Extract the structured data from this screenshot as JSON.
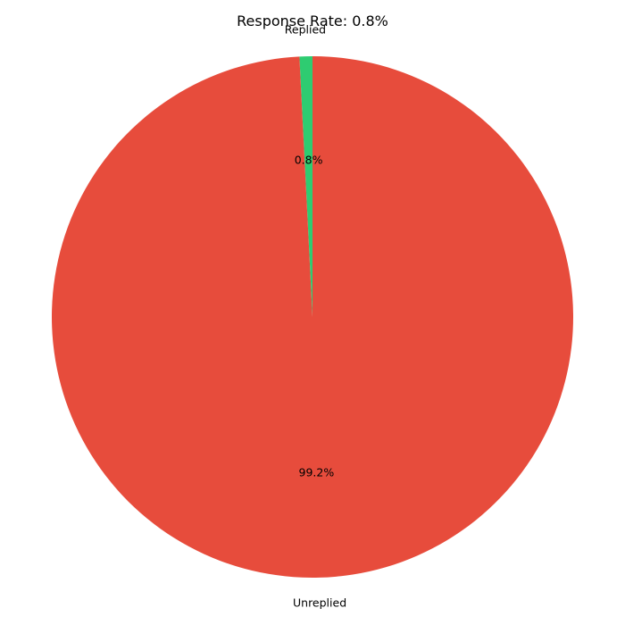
{
  "chart_data": {
    "type": "pie",
    "title": "Response Rate: 0.8%",
    "start_angle_deg": 90,
    "direction": "counterclockwise",
    "slices": [
      {
        "label": "Replied",
        "value": 0.8,
        "pct_label": "0.8%",
        "color": "#2ecc71"
      },
      {
        "label": "Unreplied",
        "value": 99.2,
        "pct_label": "99.2%",
        "color": "#e74c3c"
      }
    ]
  }
}
